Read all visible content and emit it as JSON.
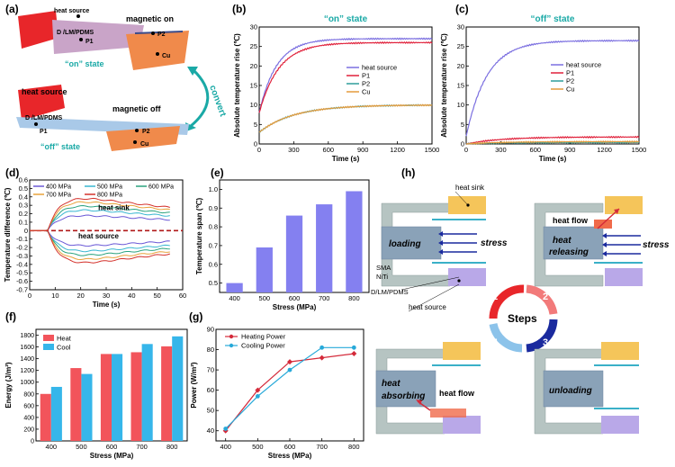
{
  "panels": {
    "a": {
      "label": "(a)",
      "on_texts": {
        "heat_source": "heat source",
        "magnetic_on": "magnetic on",
        "dlm": "D /LM/PDMS",
        "p1": "P1",
        "p2": "P2",
        "cu": "Cu",
        "state": "“on” state"
      },
      "off_texts": {
        "heat_source": "heat source",
        "magnetic_off": "magnetic off",
        "dlm": "D /LM/PDMS",
        "p1": "P1",
        "p2": "P2",
        "cu": "Cu",
        "state": "“off” state"
      },
      "convert": "convert",
      "colors": {
        "red": "#e8262a",
        "orange": "#f08a4b",
        "blue": "#a9c9e8",
        "cyan": "#1aa9a6"
      }
    },
    "b": {
      "label": "(b)"
    },
    "c": {
      "label": "(c)"
    },
    "d": {
      "label": "(d)",
      "annotations": {
        "sink": "heat sink",
        "source": "heat source"
      }
    },
    "e": {
      "label": "(e)"
    },
    "f": {
      "label": "(f)"
    },
    "g": {
      "label": "(g)"
    },
    "h": {
      "label": "(h)",
      "texts": {
        "heat_sink": "heat sink",
        "loading": "loading",
        "stress": "stress",
        "sma": "SMA",
        "niti": "NiTi",
        "dlm": "D/LM/PDMS",
        "heat_source": "heat source",
        "heat_flow": "heat flow",
        "heat_releasing_1": "heat",
        "heat_releasing_2": "releasing",
        "stress2": "stress",
        "steps": "Steps",
        "s1": "1",
        "s2": "2",
        "s3": "3",
        "s4": "4",
        "heat_absorbing_1": "heat",
        "heat_absorbing_2": "absorbing",
        "heat_flow2": "heat flow",
        "unloading": "unloading"
      }
    }
  },
  "chart_data": [
    {
      "id": "b",
      "type": "line",
      "title": "“on” state",
      "xlabel": "Time (s)",
      "ylabel": "Absolute temperature rise (℃)",
      "xlim": [
        0,
        1500
      ],
      "ylim": [
        0,
        30
      ],
      "xticks": [
        0,
        300,
        600,
        900,
        1200,
        1500
      ],
      "yticks": [
        0,
        5,
        10,
        15,
        20,
        25,
        30
      ],
      "series": [
        {
          "name": "heat source",
          "color": "#7b6fe0",
          "plateau": 27,
          "start": 8,
          "tau": 150
        },
        {
          "name": "P1",
          "color": "#e0203a",
          "plateau": 26,
          "start": 8,
          "tau": 170
        },
        {
          "name": "P2",
          "color": "#2e9e9a",
          "plateau": 10,
          "start": 3,
          "tau": 300
        },
        {
          "name": "Cu",
          "color": "#e49a3c",
          "plateau": 10,
          "start": 3,
          "tau": 300
        }
      ]
    },
    {
      "id": "c",
      "type": "line",
      "title": "“off” state",
      "xlabel": "Time (s)",
      "ylabel": "Absolute temperature rise (℃)",
      "xlim": [
        0,
        1500
      ],
      "ylim": [
        0,
        30
      ],
      "xticks": [
        0,
        300,
        600,
        900,
        1200,
        1500
      ],
      "yticks": [
        0,
        5,
        10,
        15,
        20,
        25,
        30
      ],
      "series": [
        {
          "name": "heat source",
          "color": "#7b6fe0",
          "plateau": 26.5,
          "start": 2,
          "tau": 180
        },
        {
          "name": "P1",
          "color": "#e0203a",
          "plateau": 1.8,
          "start": 0,
          "tau": 300
        },
        {
          "name": "P2",
          "color": "#2e9e9a",
          "plateau": 0.4,
          "start": 0,
          "tau": 300
        },
        {
          "name": "Cu",
          "color": "#e49a3c",
          "plateau": 0.6,
          "start": 0,
          "tau": 300
        }
      ]
    },
    {
      "id": "d",
      "type": "line",
      "xlabel": "Time (s)",
      "ylabel": "Temperature difference (℃)",
      "xlim": [
        0,
        60
      ],
      "ylim": [
        -0.7,
        0.6
      ],
      "xticks": [
        0,
        10,
        20,
        30,
        40,
        50,
        60
      ],
      "yticks": [
        -0.7,
        -0.6,
        -0.5,
        -0.4,
        -0.3,
        -0.2,
        -0.1,
        0.0,
        0.1,
        0.2,
        0.3,
        0.4,
        0.5,
        0.6
      ],
      "series": [
        {
          "name": "400 MPa",
          "color": "#6a58d6",
          "peak": 0.22
        },
        {
          "name": "500 MPa",
          "color": "#39b7d1",
          "peak": 0.3
        },
        {
          "name": "600 MPa",
          "color": "#2aa37e",
          "peak": 0.36
        },
        {
          "name": "700 MPa",
          "color": "#e8a23a",
          "peak": 0.42
        },
        {
          "name": "800 MPa",
          "color": "#d4322c",
          "peak": 0.47
        }
      ]
    },
    {
      "id": "e",
      "type": "bar",
      "xlabel": "Stress (MPa)",
      "ylabel": "Temperature span (℃)",
      "categories": [
        "400",
        "500",
        "600",
        "700",
        "800"
      ],
      "values": [
        0.5,
        0.69,
        0.86,
        0.92,
        0.99
      ],
      "ylim": [
        0.45,
        1.05
      ],
      "yticks": [
        0.5,
        0.6,
        0.7,
        0.8,
        0.9,
        1.0
      ],
      "color": "#8480f0"
    },
    {
      "id": "f",
      "type": "bar",
      "xlabel": "Stress (MPa)",
      "ylabel": "Energy (J/m²)",
      "categories": [
        "400",
        "500",
        "600",
        "700",
        "800"
      ],
      "series": [
        {
          "name": "Heat",
          "color": "#f2545b",
          "values": [
            800,
            1240,
            1480,
            1510,
            1610
          ]
        },
        {
          "name": "Cool",
          "color": "#36b6ea",
          "values": [
            920,
            1140,
            1480,
            1650,
            1780
          ]
        }
      ],
      "ylim": [
        0,
        1900
      ],
      "yticks": [
        0,
        200,
        400,
        600,
        800,
        1000,
        1200,
        1400,
        1600,
        1800
      ]
    },
    {
      "id": "g",
      "type": "line",
      "xlabel": "Stress (MPa)",
      "ylabel": "Power (W/m²)",
      "x": [
        400,
        500,
        600,
        700,
        800
      ],
      "series": [
        {
          "name": "Heating Power",
          "color": "#d42a3a",
          "values": [
            40,
            60,
            74,
            76,
            78
          ]
        },
        {
          "name": "Cooling Power",
          "color": "#27a9d9",
          "values": [
            41,
            57,
            70,
            81,
            81
          ]
        }
      ],
      "xlim": [
        370,
        830
      ],
      "ylim": [
        35,
        90
      ],
      "xticks": [
        400,
        500,
        600,
        700,
        800
      ],
      "yticks": [
        40,
        50,
        60,
        70,
        80,
        90
      ]
    }
  ]
}
